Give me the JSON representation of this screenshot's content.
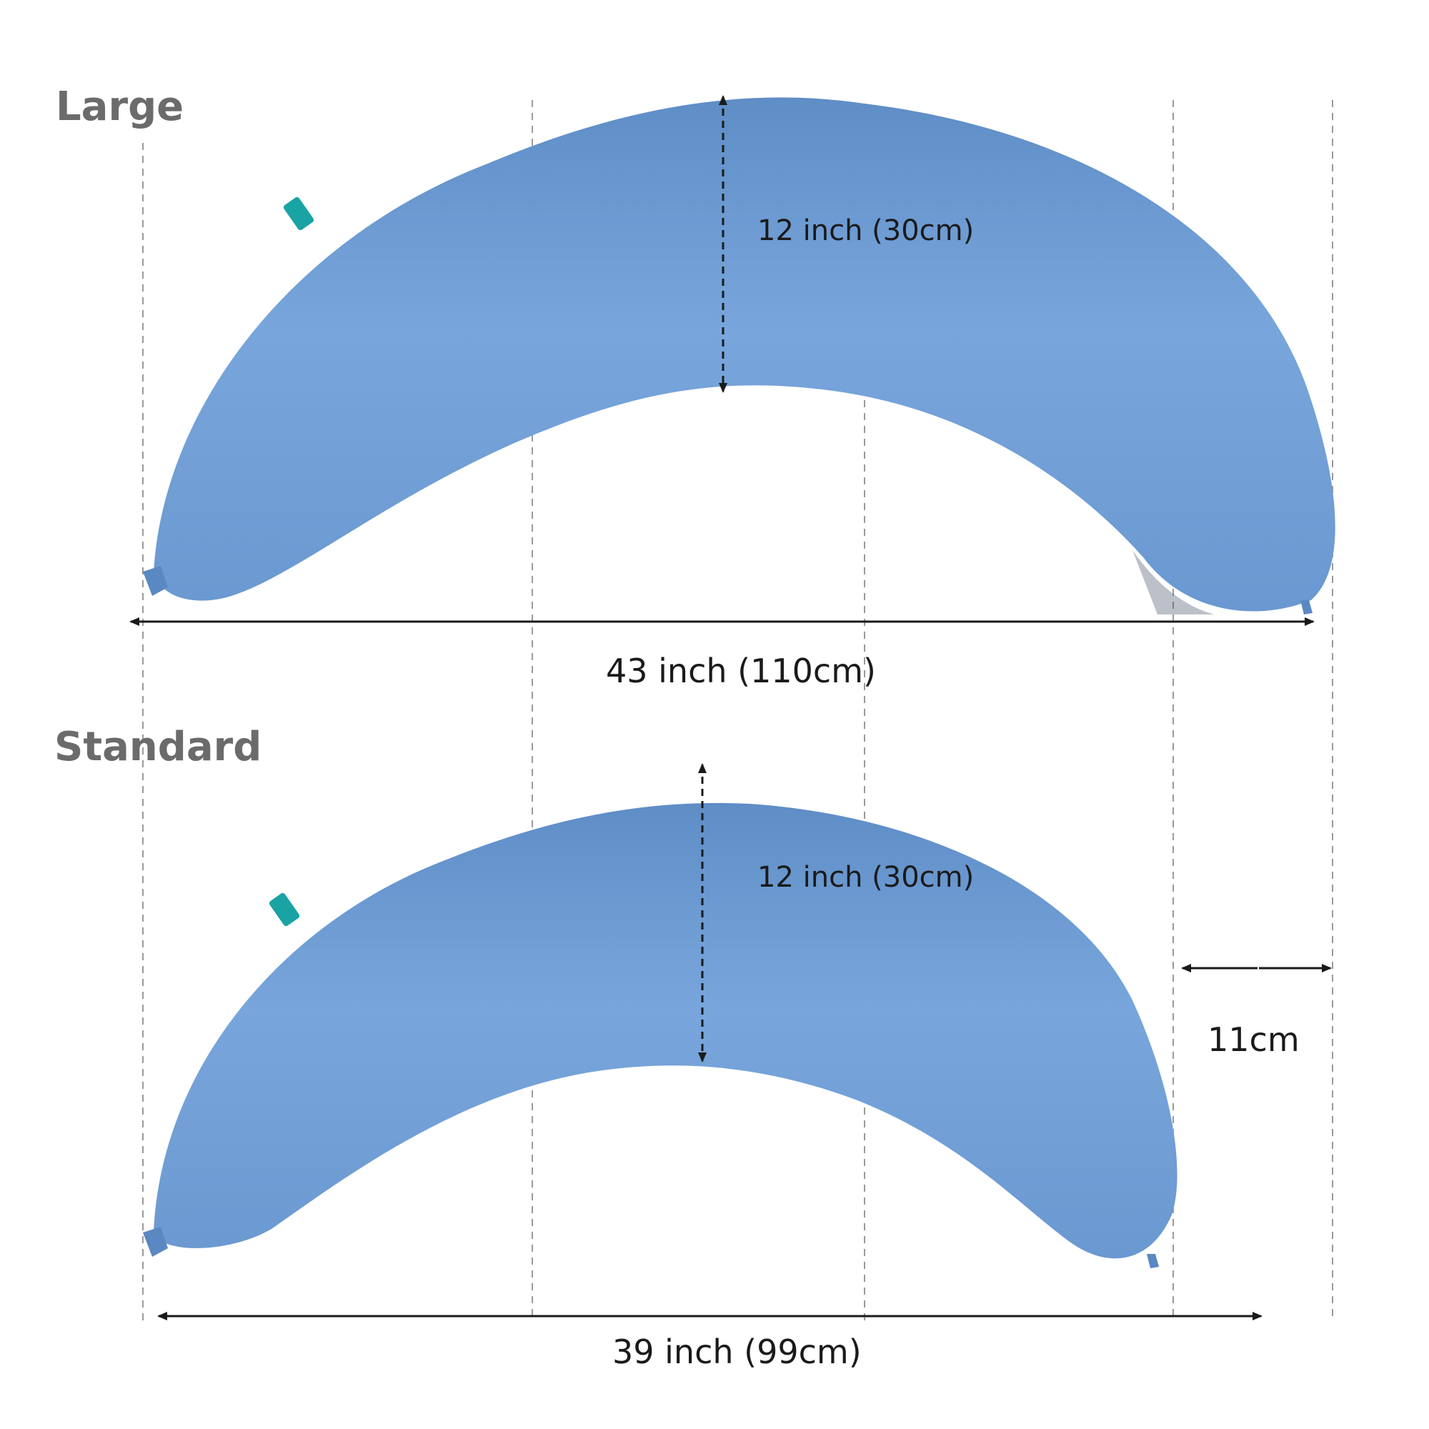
{
  "large": {
    "label": "Large",
    "height_label": "12 inch (30cm)",
    "width_label": "43 inch (110cm)"
  },
  "standard": {
    "label": "Standard",
    "height_label": "12 inch (30cm)",
    "width_label": "39 inch (99cm)",
    "difference_label": "11cm"
  },
  "colors": {
    "pillow": "#6d9bd2",
    "pillow_dark": "#5b86bd",
    "label_highlight": "#9cb6da",
    "label_text": "#6b6b6b",
    "tag": "#1aa3a3"
  }
}
